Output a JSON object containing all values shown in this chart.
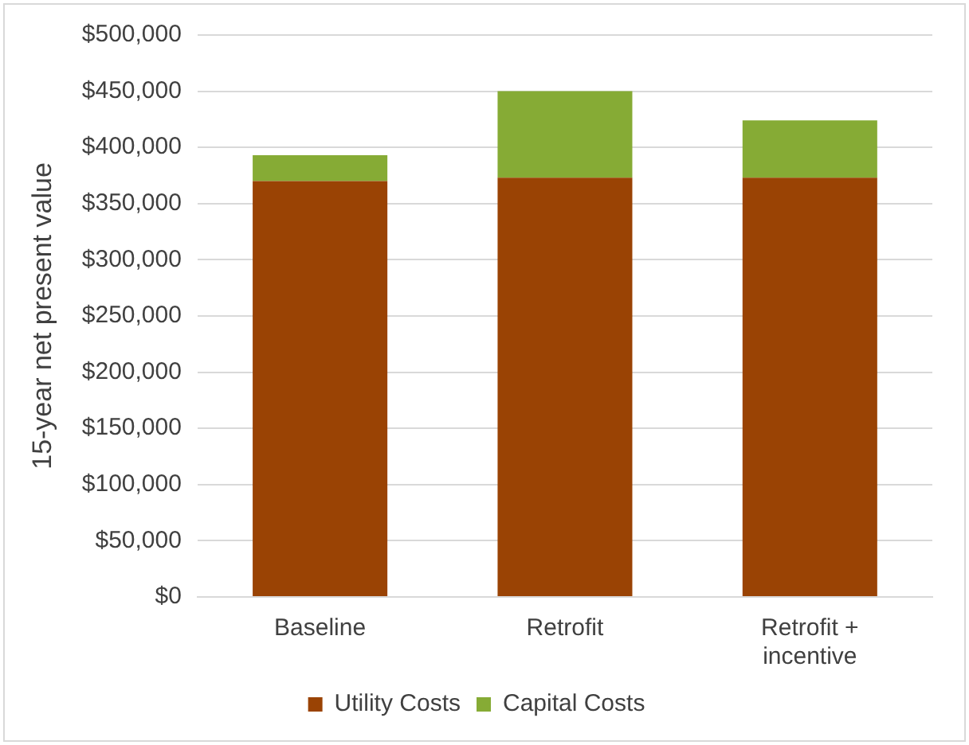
{
  "chart_data": {
    "type": "bar",
    "stacked": true,
    "ylabel": "15-year net present value",
    "categories": [
      "Baseline",
      "Retrofit",
      "Retrofit + incentive"
    ],
    "series": [
      {
        "name": "Utility Costs",
        "color": "#9a4304",
        "values": [
          370000,
          373000,
          373000
        ]
      },
      {
        "name": "Capital Costs",
        "color": "#86ab35",
        "values": [
          23000,
          77000,
          51000
        ]
      }
    ],
    "ylim": [
      0,
      500000
    ],
    "yticks": [
      {
        "value": 0,
        "label": "$0"
      },
      {
        "value": 50000,
        "label": "$50,000"
      },
      {
        "value": 100000,
        "label": "$100,000"
      },
      {
        "value": 150000,
        "label": "$150,000"
      },
      {
        "value": 200000,
        "label": "$200,000"
      },
      {
        "value": 250000,
        "label": "$250,000"
      },
      {
        "value": 300000,
        "label": "$300,000"
      },
      {
        "value": 350000,
        "label": "$350,000"
      },
      {
        "value": 400000,
        "label": "$400,000"
      },
      {
        "value": 450000,
        "label": "$450,000"
      },
      {
        "value": 500000,
        "label": "$500,000"
      }
    ],
    "grid": "y",
    "legend": "bottom"
  }
}
